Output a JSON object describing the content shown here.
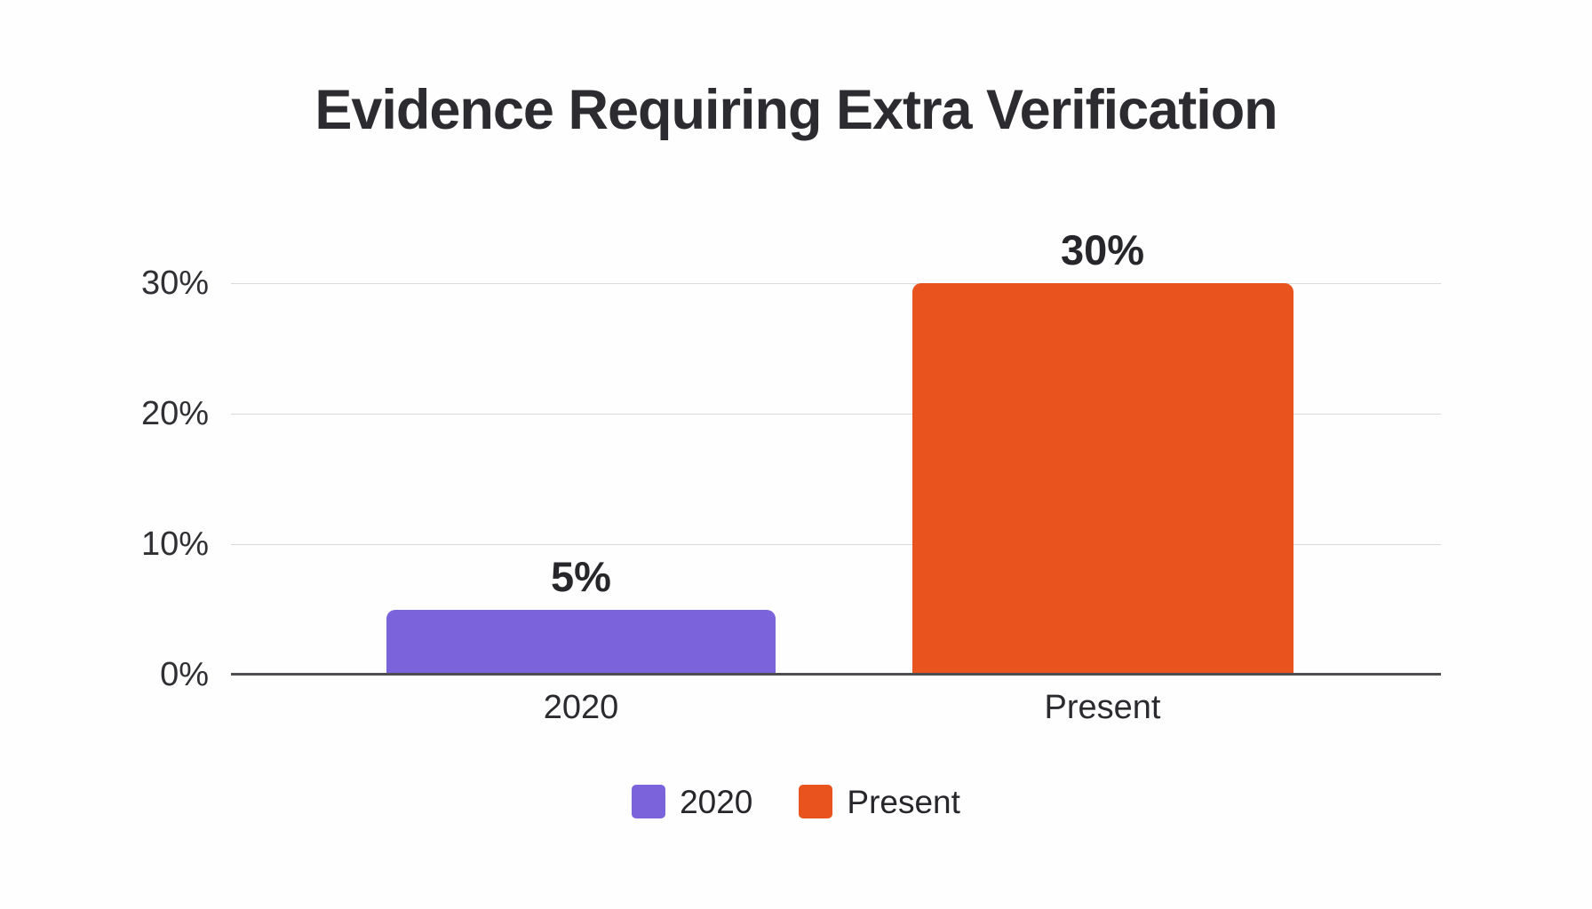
{
  "title": "Evidence Requiring Extra Verification",
  "colors": {
    "series_2020": "#7b64db",
    "series_present": "#e8531e",
    "title_text": "#2b2b30",
    "axis_text": "#2f2f34",
    "gridline": "#d9d9d9",
    "baseline": "#4d4d52",
    "background": "#fefefe"
  },
  "chart_data": {
    "type": "bar",
    "title": "Evidence Requiring Extra Verification",
    "categories": [
      "2020",
      "Present"
    ],
    "values": [
      5,
      30
    ],
    "value_labels": [
      "5%",
      "30%"
    ],
    "series_colors": [
      "#7b64db",
      "#e8531e"
    ],
    "xlabel": "",
    "ylabel": "",
    "y_ticks": [
      0,
      10,
      20,
      30
    ],
    "y_tick_labels": [
      "0%",
      "10%",
      "20%",
      "30%"
    ],
    "ylim": [
      0,
      34.7
    ],
    "grid": "horizontal-gridlines",
    "legend": {
      "position": "bottom-center",
      "items": [
        {
          "label": "2020",
          "color": "#7b64db"
        },
        {
          "label": "Present",
          "color": "#e8531e"
        }
      ]
    }
  }
}
